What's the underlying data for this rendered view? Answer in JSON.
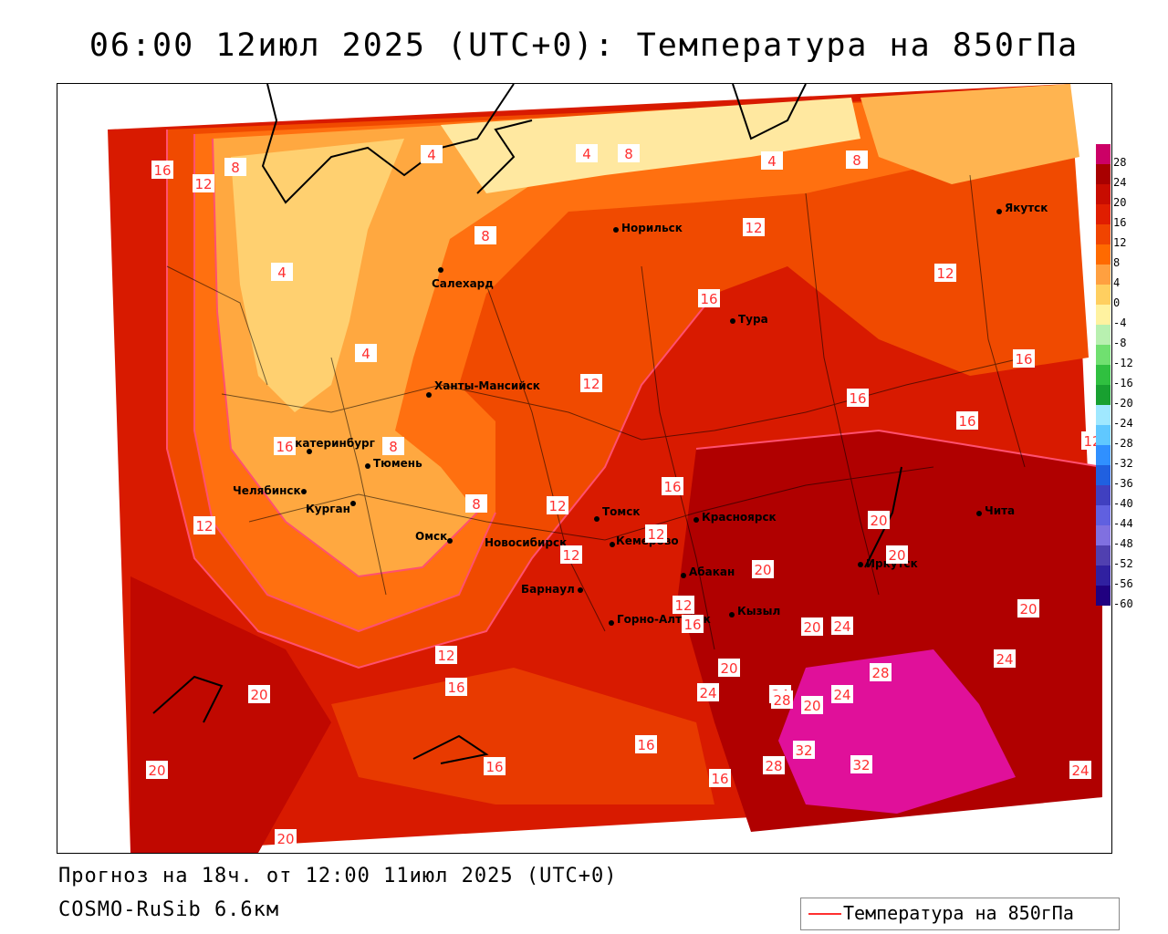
{
  "title": "06:00 12июл 2025 (UTC+0): Температура на 850гПа",
  "footer": {
    "forecast": "Прогноз на 18ч. от 12:00 11июл 2025 (UTC+0)",
    "model": "COSMO-RuSib 6.6км"
  },
  "legend": {
    "series_name": "Температура на 850гПа",
    "line_color": "#ff3030"
  },
  "colorbar": {
    "ticks": [
      "28",
      "24",
      "20",
      "16",
      "12",
      "8",
      "4",
      "0",
      "-4",
      "-8",
      "-12",
      "-16",
      "-20",
      "-24",
      "-28",
      "-32",
      "-36",
      "-40",
      "-44",
      "-48",
      "-52",
      "-56",
      "-60"
    ],
    "colors": [
      "#cc0066",
      "#a80000",
      "#c80c00",
      "#e01e00",
      "#f04400",
      "#ff6a00",
      "#ffa040",
      "#ffcf60",
      "#fff2a0",
      "#b8f0b0",
      "#70e070",
      "#30c040",
      "#18a030",
      "#a0e8ff",
      "#60c8ff",
      "#3090ff",
      "#2060e0",
      "#4040c0",
      "#6060e0",
      "#8070e0",
      "#5040b0",
      "#3020a0",
      "#200080"
    ]
  },
  "cities": [
    {
      "name": "Норильск"
    },
    {
      "name": "Якутск"
    },
    {
      "name": "Салехард"
    },
    {
      "name": "Тура"
    },
    {
      "name": "Ханты-Мансийск"
    },
    {
      "name": "Екатеринбург"
    },
    {
      "name": "Тюмень"
    },
    {
      "name": "Челябинск"
    },
    {
      "name": "Курган"
    },
    {
      "name": "Омск"
    },
    {
      "name": "Томск"
    },
    {
      "name": "Красноярск"
    },
    {
      "name": "Новосибирск"
    },
    {
      "name": "Кемерово"
    },
    {
      "name": "Барнаул"
    },
    {
      "name": "Абакан"
    },
    {
      "name": "Иркутск"
    },
    {
      "name": "Чита"
    },
    {
      "name": "Горно-Алтайск"
    },
    {
      "name": "Кызыл"
    }
  ],
  "isotherm_labels": [
    "16",
    "12",
    "8",
    "4",
    "4",
    "8",
    "4",
    "8",
    "12",
    "4",
    "4",
    "8",
    "12",
    "16",
    "12",
    "12",
    "16",
    "16",
    "16",
    "12",
    "8",
    "8",
    "12",
    "16",
    "12",
    "12",
    "20",
    "20",
    "20",
    "16",
    "12",
    "16",
    "12",
    "16",
    "24",
    "20",
    "20",
    "24",
    "28",
    "24",
    "24",
    "20",
    "24",
    "28",
    "32",
    "28",
    "32",
    "16",
    "16",
    "20",
    "20",
    "20",
    "16",
    "24",
    "20"
  ]
}
